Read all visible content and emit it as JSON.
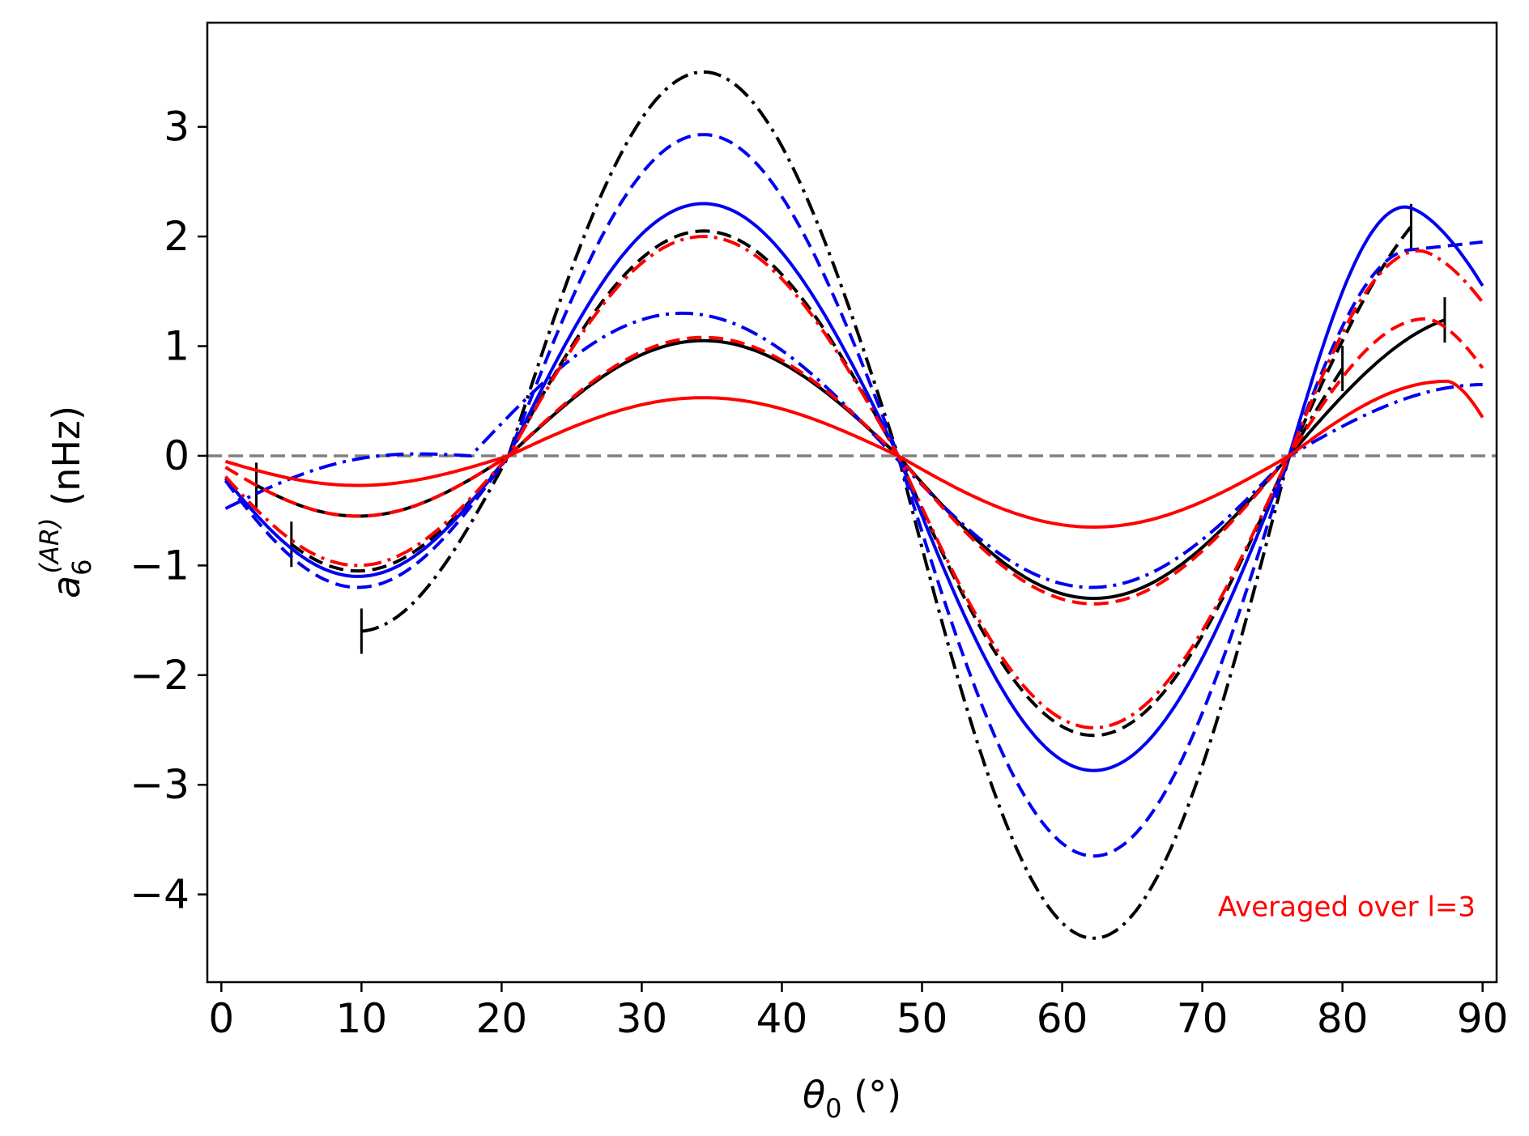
{
  "chart_data": {
    "type": "line",
    "title": "",
    "xlabel": "θ",
    "xlabel_sub": "0",
    "xlabel_unit": " (°)",
    "ylabel_base": "a",
    "ylabel_sub": "6",
    "ylabel_sup": "(AR)",
    "ylabel_unit": " (nHz)",
    "xlim": [
      -1,
      91
    ],
    "ylim": [
      -4.8,
      3.95
    ],
    "xticks": [
      0,
      10,
      20,
      30,
      40,
      50,
      60,
      70,
      80,
      90
    ],
    "xtick_labels": [
      "0",
      "10",
      "20",
      "30",
      "40",
      "50",
      "60",
      "70",
      "80",
      "90"
    ],
    "yticks": [
      -4,
      -3,
      -2,
      -1,
      0,
      1,
      2,
      3
    ],
    "ytick_labels": [
      "−4",
      "−3",
      "−2",
      "−1",
      "0",
      "1",
      "2",
      "3"
    ],
    "reference_line": {
      "y": 0,
      "color": "#808080",
      "style": "dashed"
    },
    "annotation": {
      "text": "Averaged over l=3",
      "color": "#ff0000",
      "x": 89.5,
      "y": -4.2,
      "anchor": "end"
    },
    "series": [
      {
        "name": "black solid",
        "color": "#000000",
        "style": "solid",
        "amp": [
          0.55,
          1.05,
          -1.3,
          1.3
        ],
        "x_start": 2.5,
        "x_end": 87.3,
        "markers": [
          2.5,
          87.3
        ]
      },
      {
        "name": "black dashed",
        "color": "#000000",
        "style": "dashed",
        "amp": [
          1.05,
          2.05,
          -2.55,
          2.5
        ],
        "x_start": 5,
        "x_end": 84.9,
        "markers": [
          5,
          84.9
        ]
      },
      {
        "name": "black dash-dot",
        "color": "#000000",
        "style": "dashdot",
        "amp": [
          1.6,
          3.5,
          -4.4,
          1.9
        ],
        "x_start": 10,
        "x_end": 80,
        "markers": [
          10,
          80
        ]
      },
      {
        "name": "blue solid",
        "color": "#0000ee",
        "style": "solid",
        "amp": [
          1.1,
          2.3,
          -2.87,
          2.27
        ],
        "x_start": 0.3,
        "x_end": 90,
        "peak_x": 84.5,
        "end_y": 1.55,
        "markers": []
      },
      {
        "name": "blue dashed",
        "color": "#0000ee",
        "style": "dashed",
        "amp": [
          1.2,
          2.93,
          -3.65,
          1.88
        ],
        "x_start": 0.3,
        "x_end": 90,
        "plateau_x": 85,
        "end_y": 1.95,
        "markers": []
      },
      {
        "name": "blue dash-dot",
        "color": "#0000ee",
        "style": "dashdot",
        "amp": [
          -0.5,
          1.3,
          -1.2,
          0.65
        ],
        "x_start": 0.3,
        "x_end": 90,
        "markers": []
      },
      {
        "name": "red solid",
        "color": "#ff0000",
        "style": "solid",
        "amp": [
          0.27,
          0.53,
          -0.65,
          0.68
        ],
        "x_start": 0.3,
        "x_end": 90,
        "peak_x": 87.5,
        "end_y": 0.35,
        "markers": []
      },
      {
        "name": "red dashed",
        "color": "#ff0000",
        "style": "dashed",
        "amp": [
          0.55,
          1.08,
          -1.35,
          1.25
        ],
        "x_start": 0.3,
        "x_end": 90,
        "peak_x": 86,
        "end_y": 0.8,
        "markers": []
      },
      {
        "name": "red dash-dot",
        "color": "#ff0000",
        "style": "dashdot",
        "amp": [
          1.0,
          2.0,
          -2.48,
          1.87
        ],
        "x_start": 0.3,
        "x_end": 90,
        "peak_x": 85.5,
        "end_y": 1.4,
        "markers": []
      }
    ]
  }
}
